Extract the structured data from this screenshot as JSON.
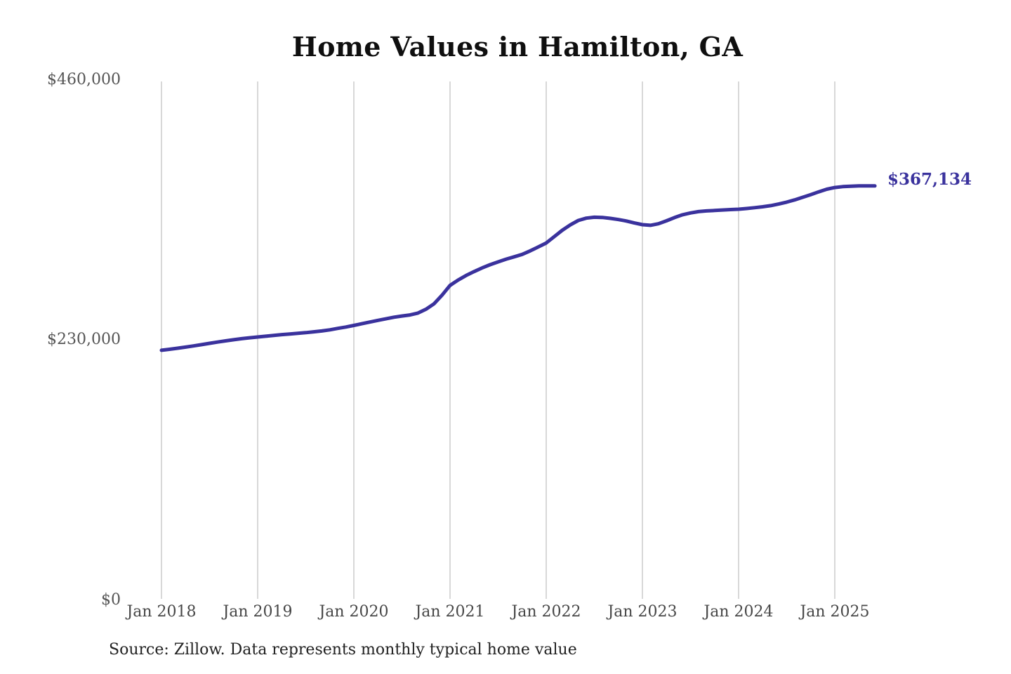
{
  "chart_data": {
    "type": "line",
    "title": "Home Values in Hamilton, GA",
    "series_name": "Monthly typical home value",
    "x": [
      "2018-01",
      "2018-02",
      "2018-03",
      "2018-04",
      "2018-05",
      "2018-06",
      "2018-07",
      "2018-08",
      "2018-09",
      "2018-10",
      "2018-11",
      "2018-12",
      "2019-01",
      "2019-02",
      "2019-03",
      "2019-04",
      "2019-05",
      "2019-06",
      "2019-07",
      "2019-08",
      "2019-09",
      "2019-10",
      "2019-11",
      "2019-12",
      "2020-01",
      "2020-02",
      "2020-03",
      "2020-04",
      "2020-05",
      "2020-06",
      "2020-07",
      "2020-08",
      "2020-09",
      "2020-10",
      "2020-11",
      "2020-12",
      "2021-01",
      "2021-02",
      "2021-03",
      "2021-04",
      "2021-05",
      "2021-06",
      "2021-07",
      "2021-08",
      "2021-09",
      "2021-10",
      "2021-11",
      "2021-12",
      "2022-01",
      "2022-02",
      "2022-03",
      "2022-04",
      "2022-05",
      "2022-06",
      "2022-07",
      "2022-08",
      "2022-09",
      "2022-10",
      "2022-11",
      "2022-12",
      "2023-01",
      "2023-02",
      "2023-03",
      "2023-04",
      "2023-05",
      "2023-06",
      "2023-07",
      "2023-08",
      "2023-09",
      "2023-10",
      "2023-11",
      "2023-12",
      "2024-01",
      "2024-02",
      "2024-03",
      "2024-04",
      "2024-05",
      "2024-06",
      "2024-07",
      "2024-08",
      "2024-09",
      "2024-10",
      "2024-11",
      "2024-12",
      "2025-01",
      "2025-02",
      "2025-03",
      "2025-04",
      "2025-05",
      "2025-06"
    ],
    "values": [
      221000,
      221900,
      222800,
      223800,
      224900,
      226000,
      227200,
      228300,
      229400,
      230400,
      231300,
      232100,
      232800,
      233500,
      234200,
      234900,
      235500,
      236100,
      236700,
      237400,
      238200,
      239200,
      240500,
      241700,
      243100,
      244600,
      246100,
      247600,
      249000,
      250400,
      251500,
      252400,
      254100,
      257500,
      262300,
      270000,
      278700,
      283400,
      287500,
      291000,
      294200,
      297100,
      299600,
      302000,
      304100,
      306300,
      309400,
      312800,
      316400,
      322000,
      327700,
      332500,
      336400,
      338500,
      339300,
      339100,
      338300,
      337200,
      335900,
      334200,
      332700,
      332100,
      333500,
      336100,
      339000,
      341500,
      343100,
      344300,
      344900,
      345300,
      345700,
      346100,
      346400,
      347000,
      347800,
      348600,
      349600,
      351000,
      352700,
      354700,
      357000,
      359400,
      361900,
      364200,
      365700,
      366500,
      366900,
      367100,
      367200,
      367134
    ],
    "last_value": 367134,
    "end_label": "$367,134",
    "ylim": [
      0,
      460000
    ],
    "y_ticks": [
      0,
      230000,
      460000
    ],
    "y_tick_labels": [
      "$0",
      "$230,000",
      "$460,000"
    ],
    "x_tick_labels": [
      "Jan 2018",
      "Jan 2019",
      "Jan 2020",
      "Jan 2021",
      "Jan 2022",
      "Jan 2023",
      "Jan 2024",
      "Jan 2025"
    ],
    "grid": "vertical gridlines at each January, no horizontal gridlines",
    "legend": "none",
    "line_color": "#3a329d",
    "grid_color": "#cccccc"
  },
  "footer": {
    "source_text": "Source: Zillow. Data represents monthly typical home value"
  }
}
